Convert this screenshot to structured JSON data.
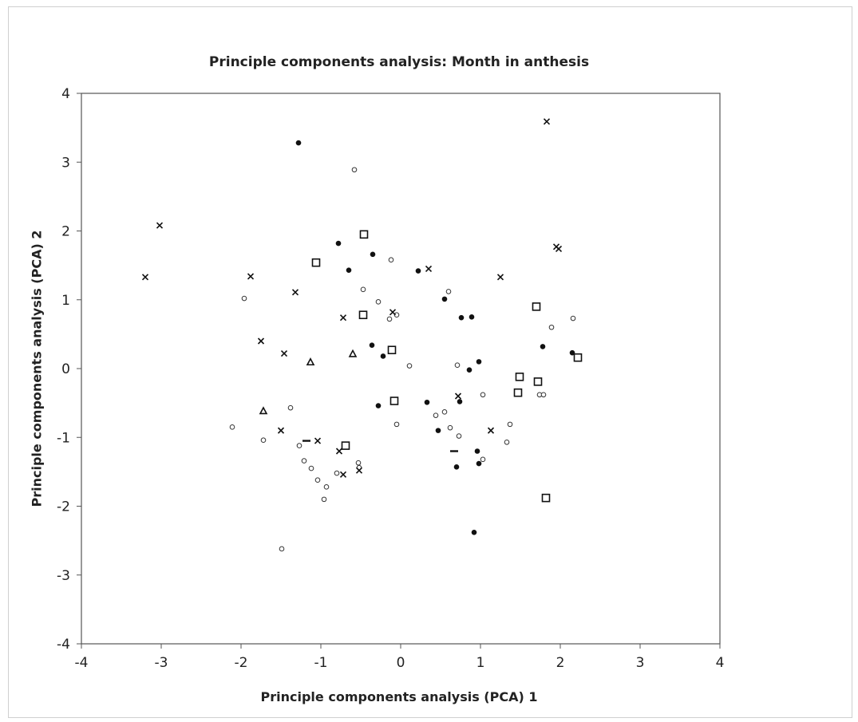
{
  "chart_data": {
    "type": "scatter",
    "title": "Principle components analysis:  Month in anthesis",
    "xlabel": "Principle components analysis (PCA) 1",
    "ylabel": "Principle components analysis (PCA) 2",
    "xlim": [
      -4,
      4
    ],
    "ylim": [
      -4,
      4
    ],
    "xticks": [
      -4,
      -3,
      -2,
      -1,
      0,
      1,
      2,
      3,
      4
    ],
    "yticks": [
      -4,
      -3,
      -2,
      -1,
      0,
      1,
      2,
      3,
      4
    ],
    "grid": false,
    "legend": "none",
    "series": [
      {
        "marker": "filled-circle",
        "points": [
          [
            -1.28,
            3.28
          ],
          [
            -0.78,
            1.82
          ],
          [
            -0.65,
            1.43
          ],
          [
            -0.35,
            1.66
          ],
          [
            0.22,
            1.42
          ],
          [
            0.55,
            1.01
          ],
          [
            0.76,
            0.74
          ],
          [
            0.89,
            0.75
          ],
          [
            -0.36,
            0.34
          ],
          [
            -0.22,
            0.18
          ],
          [
            0.86,
            -0.02
          ],
          [
            0.98,
            0.1
          ],
          [
            1.78,
            0.32
          ],
          [
            2.15,
            0.23
          ],
          [
            -0.28,
            -0.54
          ],
          [
            0.33,
            -0.49
          ],
          [
            0.74,
            -0.48
          ],
          [
            0.47,
            -0.9
          ],
          [
            0.96,
            -1.2
          ],
          [
            0.98,
            -1.38
          ],
          [
            0.7,
            -1.43
          ],
          [
            0.92,
            -2.38
          ]
        ]
      },
      {
        "marker": "open-circle",
        "points": [
          [
            -0.58,
            2.89
          ],
          [
            -0.12,
            1.58
          ],
          [
            0.6,
            1.12
          ],
          [
            -0.47,
            1.15
          ],
          [
            -0.28,
            0.97
          ],
          [
            -1.96,
            1.02
          ],
          [
            -0.14,
            0.72
          ],
          [
            -0.05,
            0.78
          ],
          [
            1.89,
            0.6
          ],
          [
            2.16,
            0.73
          ],
          [
            0.11,
            0.04
          ],
          [
            0.71,
            0.05
          ],
          [
            -1.38,
            -0.57
          ],
          [
            1.03,
            -0.38
          ],
          [
            1.74,
            -0.38
          ],
          [
            1.79,
            -0.38
          ],
          [
            0.44,
            -0.68
          ],
          [
            0.55,
            -0.63
          ],
          [
            1.37,
            -0.81
          ],
          [
            -0.05,
            -0.81
          ],
          [
            0.62,
            -0.86
          ],
          [
            -2.11,
            -0.85
          ],
          [
            0.73,
            -0.98
          ],
          [
            -1.72,
            -1.04
          ],
          [
            -1.27,
            -1.12
          ],
          [
            1.33,
            -1.07
          ],
          [
            -1.21,
            -1.34
          ],
          [
            -1.12,
            -1.45
          ],
          [
            -0.8,
            -1.52
          ],
          [
            -0.53,
            -1.37
          ],
          [
            -0.52,
            -1.44
          ],
          [
            1.03,
            -1.32
          ],
          [
            -1.04,
            -1.62
          ],
          [
            -0.93,
            -1.72
          ],
          [
            -0.96,
            -1.9
          ],
          [
            -1.49,
            -2.62
          ]
        ]
      },
      {
        "marker": "open-square",
        "points": [
          [
            -0.46,
            1.95
          ],
          [
            -1.06,
            1.54
          ],
          [
            1.7,
            0.9
          ],
          [
            -0.47,
            0.78
          ],
          [
            -0.11,
            0.27
          ],
          [
            1.49,
            -0.12
          ],
          [
            1.72,
            -0.19
          ],
          [
            2.22,
            0.16
          ],
          [
            1.47,
            -0.35
          ],
          [
            -0.08,
            -0.47
          ],
          [
            -0.69,
            -1.12
          ],
          [
            1.82,
            -1.88
          ]
        ]
      },
      {
        "marker": "cross",
        "points": [
          [
            1.83,
            3.59
          ],
          [
            -3.02,
            2.08
          ],
          [
            -3.2,
            1.33
          ],
          [
            -1.88,
            1.34
          ],
          [
            1.95,
            1.77
          ],
          [
            1.98,
            1.74
          ],
          [
            0.35,
            1.45
          ],
          [
            1.25,
            1.33
          ],
          [
            -1.32,
            1.11
          ],
          [
            -0.72,
            0.74
          ],
          [
            -0.1,
            0.82
          ],
          [
            -1.75,
            0.4
          ],
          [
            -1.46,
            0.22
          ],
          [
            -1.5,
            -0.9
          ],
          [
            -1.04,
            -1.05
          ],
          [
            -0.77,
            -1.2
          ],
          [
            -0.72,
            -1.54
          ],
          [
            -0.52,
            -1.48
          ],
          [
            0.72,
            -0.4
          ],
          [
            1.13,
            -0.9
          ]
        ]
      },
      {
        "marker": "open-triangle",
        "points": [
          [
            -1.13,
            0.09
          ],
          [
            -0.6,
            0.21
          ],
          [
            -1.72,
            -0.62
          ]
        ]
      },
      {
        "marker": "dash",
        "points": [
          [
            -1.18,
            -1.05
          ],
          [
            0.67,
            -1.2
          ]
        ]
      }
    ]
  }
}
